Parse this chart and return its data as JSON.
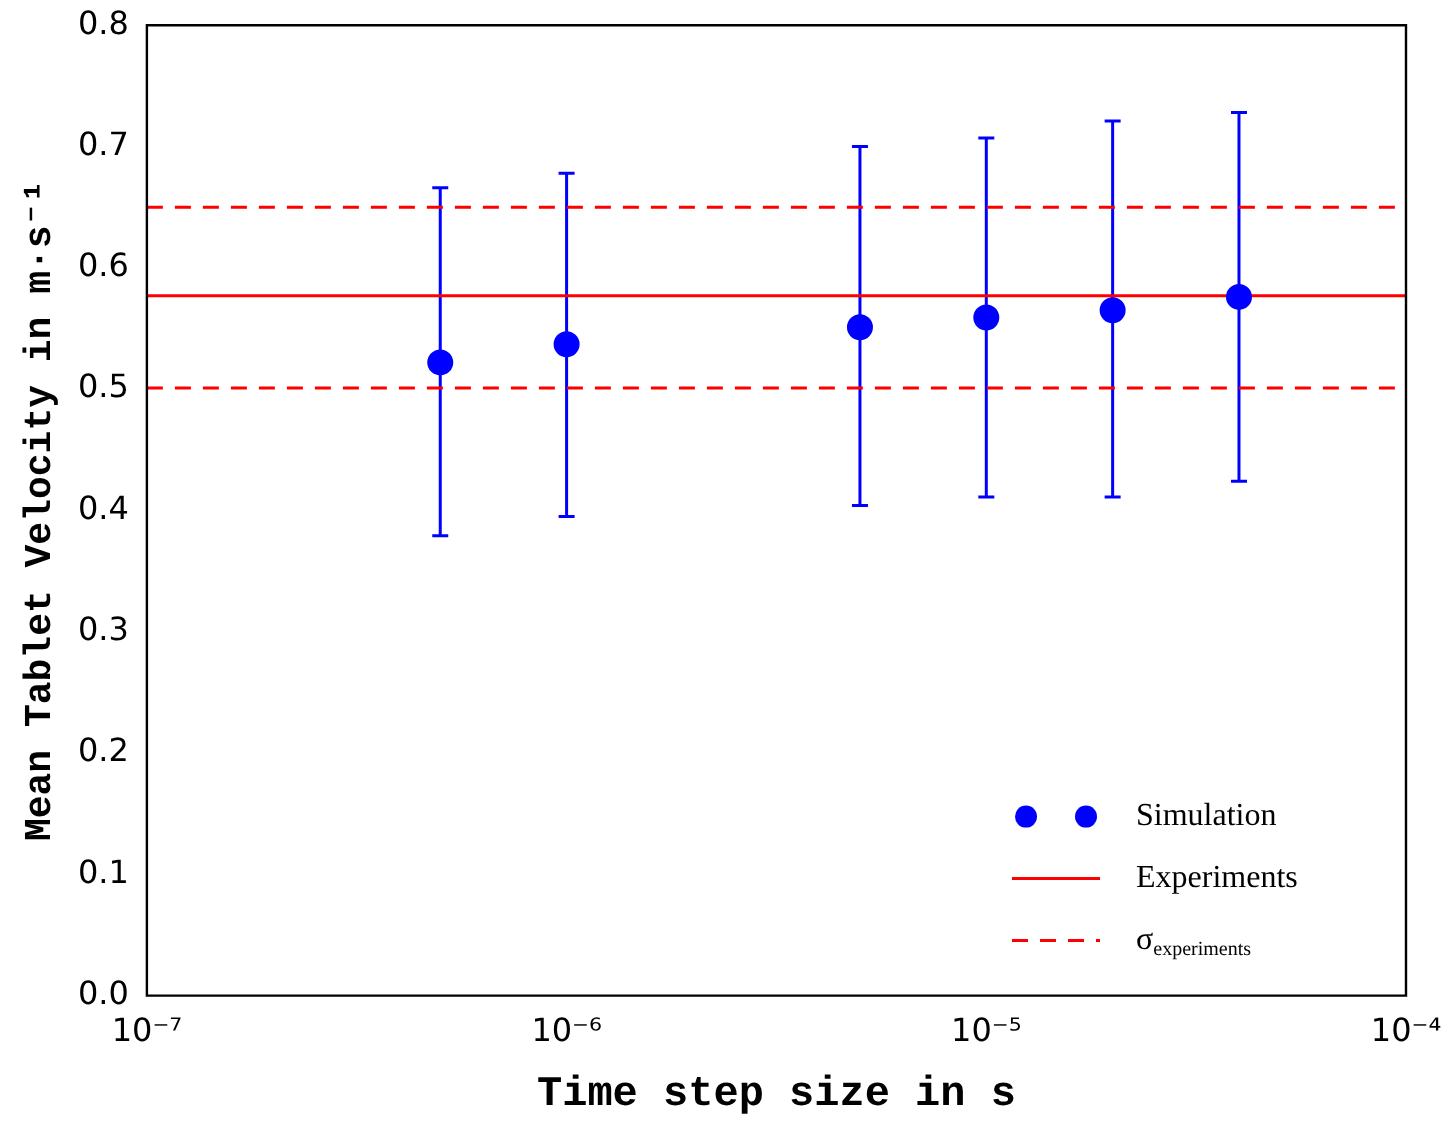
{
  "chart_data": {
    "type": "scatter",
    "xlabel": "Time step size in s",
    "ylabel": "Mean Tablet Velocity in m·s⁻¹",
    "log": "x",
    "grid": false,
    "legend": "bottom right",
    "marker": "circle",
    "xlim": [
      1e-07,
      0.0001
    ],
    "xticks": [
      {
        "value": 1e-07,
        "label": "10⁻⁷"
      },
      {
        "value": 1e-06,
        "label": "10⁻⁶"
      },
      {
        "value": 1e-05,
        "label": "10⁻⁵"
      },
      {
        "value": 0.0001,
        "label": "10⁻⁴"
      }
    ],
    "ylim": [
      0,
      0.8
    ],
    "yticks": [
      {
        "value": 0,
        "label": "0.0"
      },
      {
        "value": 0.1,
        "label": "0.1"
      },
      {
        "value": 0.2,
        "label": "0.2"
      },
      {
        "value": 0.3,
        "label": "0.3"
      },
      {
        "value": 0.4,
        "label": "0.4"
      },
      {
        "value": 0.5,
        "label": "0.5"
      },
      {
        "value": 0.6,
        "label": "0.6"
      },
      {
        "value": 0.7,
        "label": "0.7"
      },
      {
        "value": 0.8,
        "label": "0.8"
      }
    ],
    "series": [
      {
        "name": "Simulation",
        "color": "#0000ff",
        "x": [
          5e-07,
          1e-06,
          5e-06,
          1e-05,
          2e-05,
          4e-05
        ],
        "values": [
          0.522,
          0.537,
          0.551,
          0.559,
          0.565,
          0.576
        ],
        "errors": [
          [
            0.379,
            0.666
          ],
          [
            0.395,
            0.678
          ],
          [
            0.404,
            0.7
          ],
          [
            0.411,
            0.707
          ],
          [
            0.411,
            0.721
          ],
          [
            0.424,
            0.728
          ]
        ]
      }
    ],
    "ref_lines": [
      {
        "axis": "y",
        "value": 0.577,
        "label": "Experiments",
        "color": "#ff0000",
        "line_style": "solid"
      },
      {
        "axis": "y",
        "value": 0.65,
        "label": "σ$_{experiments}$",
        "color": "#ff0000",
        "line_style": "dashed"
      },
      {
        "axis": "y",
        "value": 0.501,
        "color": "#ff0000",
        "line_style": "dashed"
      }
    ]
  }
}
